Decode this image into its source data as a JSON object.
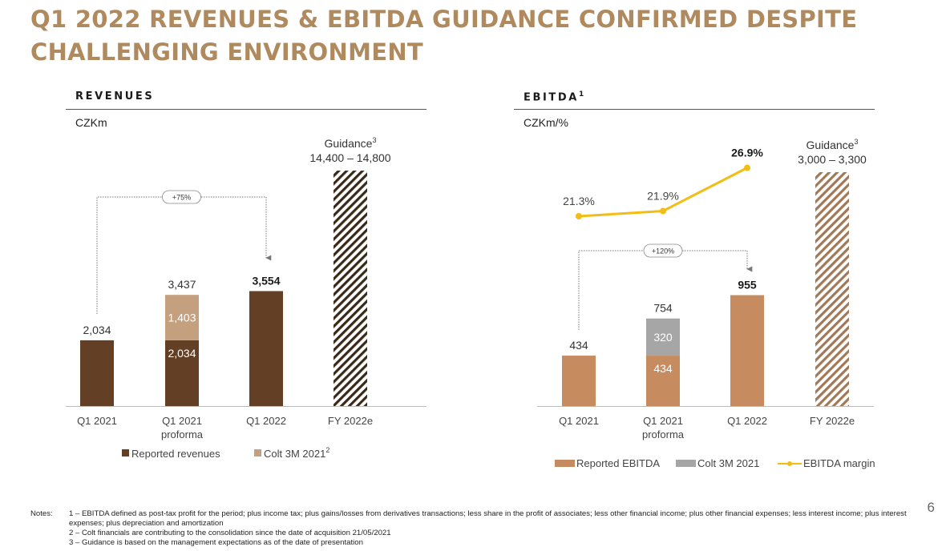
{
  "page": {
    "title_line1": "Q1 2022 REVENUES & EBITDA GUIDANCE CONFIRMED DESPITE",
    "title_line2": "CHALLENGING ENVIRONMENT",
    "page_number": "6"
  },
  "revenues": {
    "header": "REVENUES",
    "unit": "CZKm"
  },
  "ebitda": {
    "header": "EBITDA",
    "header_sup": "1",
    "unit": "CZKm/%"
  },
  "notes": {
    "label": "Notes:",
    "items": [
      "1 – EBITDA defined as post-tax profit for the period; plus income tax; plus gains/losses from derivatives transactions; less share in the profit of associates; less other financial income; plus other financial expenses; less interest income; plus interest expenses; plus depreciation and amortization",
      "2 – Colt financials are contributing to the consolidation since the date of acquisition 21/05/2021",
      "3 – Guidance is based on the management expectations as of the date of presentation"
    ]
  },
  "colors": {
    "reported_revenues": "#633f25",
    "colt_revenues": "#c5a07f",
    "reported_ebitda": "#c68b5e",
    "colt_ebitda": "#a6a6a6",
    "margin_line": "#f2bd16",
    "hatch_revenues": "#3a2a1a",
    "hatch_ebitda": "#a07a58"
  },
  "chart_data": [
    {
      "type": "bar",
      "name": "revenues",
      "categories": [
        {
          "line1": "Q1 2021",
          "line2": ""
        },
        {
          "line1": "Q1 2021",
          "line2": "proforma"
        },
        {
          "line1": "Q1 2022",
          "line2": ""
        },
        {
          "line1": "FY 2022e",
          "line2": ""
        }
      ],
      "series": [
        {
          "name": "Reported revenues",
          "values": [
            2034,
            2034,
            3554,
            null
          ]
        },
        {
          "name": "Colt 3M 2021",
          "name_sup": "2",
          "values": [
            null,
            1403,
            null,
            null
          ]
        }
      ],
      "value_labels": [
        "2,034",
        "2,034",
        "3,554",
        null
      ],
      "colt_labels": [
        null,
        "1,403",
        null,
        null
      ],
      "totals": [
        null,
        "3,437",
        null,
        null
      ],
      "bold_totals": [
        false,
        false,
        true,
        false
      ],
      "guidance": {
        "label": "Guidance",
        "label_sup": "3",
        "range": "14,400 – 14,800",
        "value_low": 14400,
        "value_high": 14800
      },
      "growth": {
        "label": "+75%",
        "from_index": 0,
        "to_index": 2
      },
      "ylim": [
        0,
        5200
      ]
    },
    {
      "type": "bar+line",
      "name": "ebitda",
      "categories": [
        {
          "line1": "Q1 2021",
          "line2": ""
        },
        {
          "line1": "Q1 2021",
          "line2": "proforma"
        },
        {
          "line1": "Q1 2022",
          "line2": ""
        },
        {
          "line1": "FY 2022e",
          "line2": ""
        }
      ],
      "series": [
        {
          "name": "Reported EBITDA",
          "values": [
            434,
            434,
            955,
            null
          ]
        },
        {
          "name": "Colt 3M 2021",
          "values": [
            null,
            320,
            null,
            null
          ]
        },
        {
          "name": "EBITDA margin",
          "values": [
            21.3,
            21.9,
            26.9,
            null
          ]
        }
      ],
      "value_labels": [
        "434",
        "434",
        "955",
        null
      ],
      "colt_labels": [
        null,
        "320",
        null,
        null
      ],
      "totals": [
        null,
        "754",
        null,
        null
      ],
      "margin_labels": [
        "21.3%",
        "21.9%",
        "26.9%",
        null
      ],
      "guidance": {
        "label": "Guidance",
        "label_sup": "3",
        "range": "3,000 – 3,300",
        "value_low": 3000,
        "value_high": 3300
      },
      "growth": {
        "label": "+120%",
        "from_index": 0,
        "to_index": 2
      },
      "ylim": [
        0,
        1000
      ],
      "margin_ylim": [
        15,
        30
      ]
    }
  ]
}
